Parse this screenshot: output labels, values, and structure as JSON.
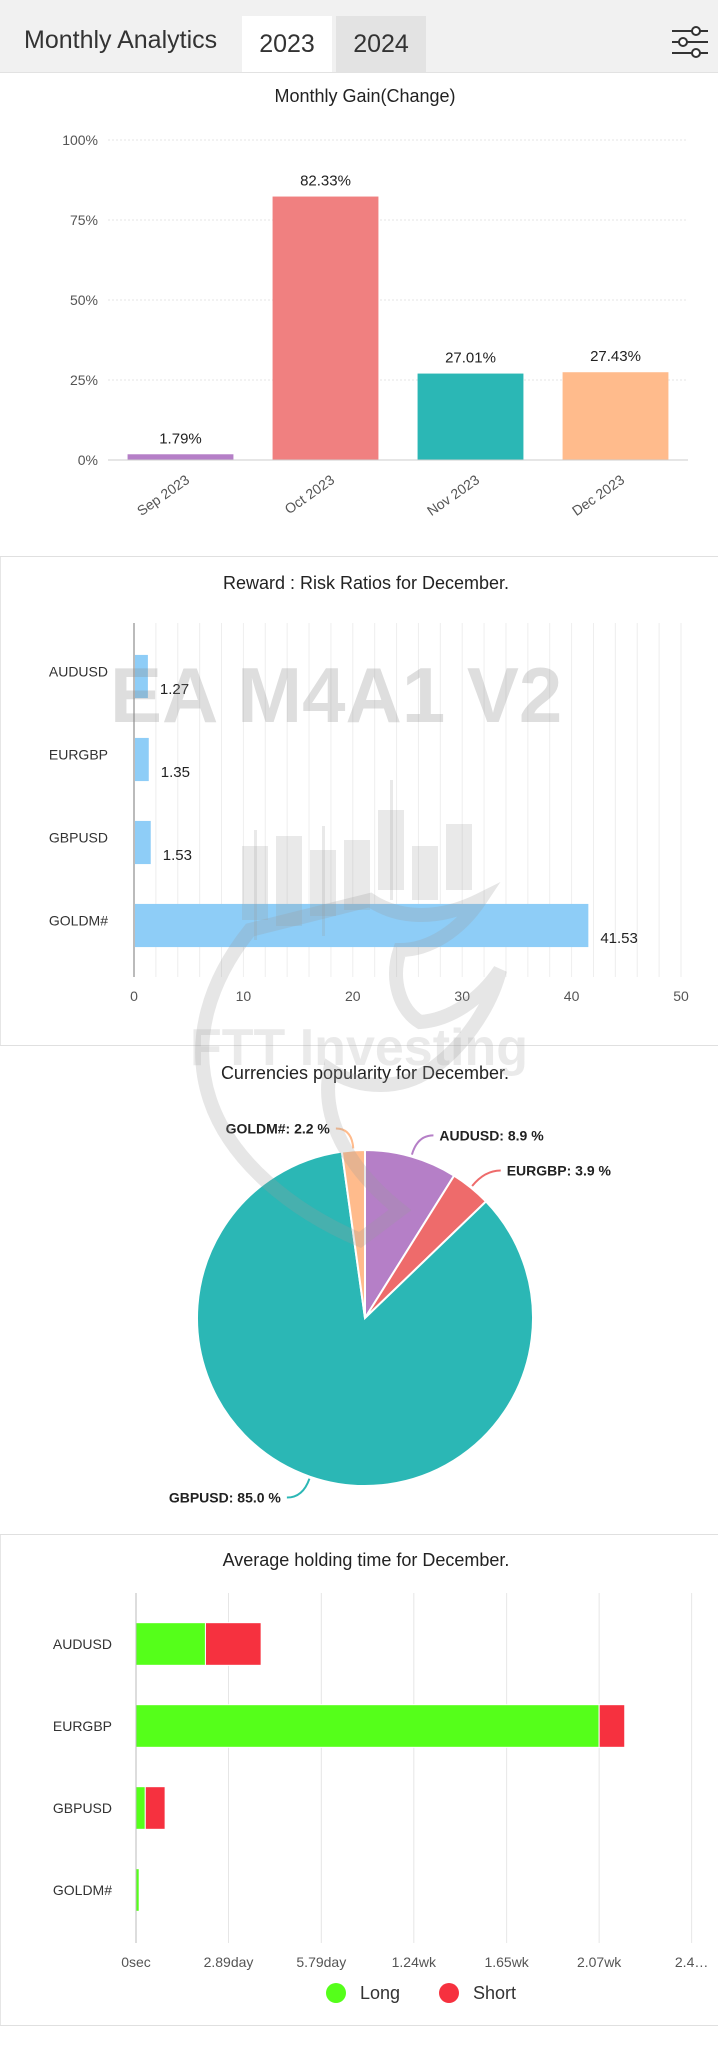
{
  "header": {
    "title": "Monthly Analytics",
    "tabs": [
      {
        "label": "2023",
        "active": true
      },
      {
        "label": "2024",
        "active": false
      }
    ],
    "filter_icon": "sliders-icon"
  },
  "watermark": {
    "text1": "EA M4A1 V2",
    "text2": "FTT Investing"
  },
  "chart_data": [
    {
      "type": "bar",
      "title": "Monthly Gain(Change)",
      "categories": [
        "Sep 2023",
        "Oct 2023",
        "Nov 2023",
        "Dec 2023"
      ],
      "values": [
        1.79,
        82.33,
        27.01,
        27.43
      ],
      "data_labels": [
        "1.79%",
        "82.33%",
        "27.01%",
        "27.43%"
      ],
      "colors": [
        "#b57fc7",
        "#f08080",
        "#2bb7b5",
        "#ffbb8c"
      ],
      "y_ticks": [
        "0%",
        "25%",
        "50%",
        "75%",
        "100%"
      ],
      "ylim": [
        0,
        100
      ],
      "grid": true
    },
    {
      "type": "bar",
      "orientation": "horizontal",
      "title": "Reward : Risk Ratios for December.",
      "categories": [
        "AUDUSD",
        "EURGBP",
        "GBPUSD",
        "GOLDM#"
      ],
      "values": [
        1.27,
        1.35,
        1.53,
        41.53
      ],
      "data_labels": [
        "1.27",
        "1.35",
        "1.53",
        "41.53"
      ],
      "color": "#8ecdf7",
      "x_ticks": [
        "0",
        "10",
        "20",
        "30",
        "40",
        "50"
      ],
      "xlim": [
        0,
        50
      ],
      "grid": true
    },
    {
      "type": "pie",
      "title": "Currencies popularity for December.",
      "slices": [
        {
          "label": "AUDUSD",
          "value": 8.9,
          "text": "AUDUSD: 8.9 %",
          "color": "#b57fc7"
        },
        {
          "label": "EURGBP",
          "value": 3.9,
          "text": "EURGBP: 3.9 %",
          "color": "#ee6b6b"
        },
        {
          "label": "GBPUSD",
          "value": 85.0,
          "text": "GBPUSD: 85.0 %",
          "color": "#2bb7b5"
        },
        {
          "label": "GOLDM#",
          "value": 2.2,
          "text": "GOLDM#: 2.2 %",
          "color": "#ffbb8c"
        }
      ]
    },
    {
      "type": "bar",
      "orientation": "horizontal",
      "stacked": true,
      "title": "Average holding time for December.",
      "categories": [
        "AUDUSD",
        "EURGBP",
        "GBPUSD",
        "GOLDM#"
      ],
      "x_ticks": [
        "0sec",
        "2.89day",
        "5.79day",
        "1.24wk",
        "1.65wk",
        "2.07wk",
        "2.4…"
      ],
      "x_tick_days": [
        0,
        2.89,
        5.79,
        8.68,
        11.58,
        14.47,
        17.36
      ],
      "series": [
        {
          "name": "Long",
          "color": "#55ff1a",
          "values": [
            2.17,
            14.47,
            0.29,
            0.1
          ]
        },
        {
          "name": "Short",
          "color": "#f6313f",
          "values": [
            1.74,
            0.8,
            0.62,
            0
          ]
        }
      ],
      "grid": true,
      "legend": "bottom"
    }
  ]
}
